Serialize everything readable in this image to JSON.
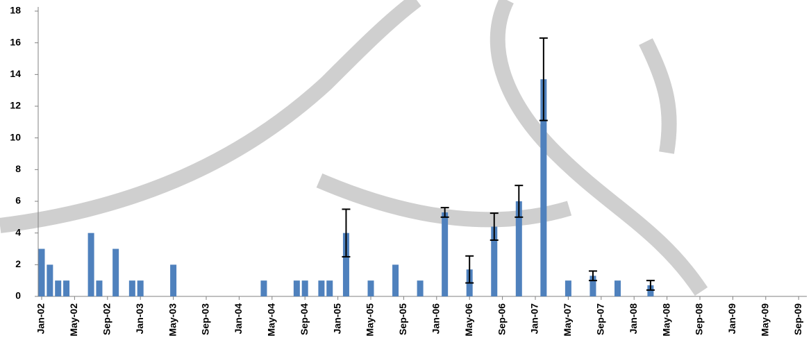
{
  "chart_data": {
    "type": "bar",
    "color": "#4f81bd",
    "error_color": "#000000",
    "categories": [
      "Jan-02",
      null,
      null,
      null,
      "May-02",
      null,
      null,
      null,
      "Sep-02",
      null,
      null,
      null,
      "Jan-03",
      null,
      null,
      null,
      "May-03",
      null,
      null,
      null,
      "Sep-03",
      null,
      null,
      null,
      "Jan-04",
      null,
      null,
      null,
      "May-04",
      null,
      null,
      null,
      "Sep-04",
      null,
      null,
      null,
      "Jan-05",
      null,
      null,
      null,
      "May-05",
      null,
      null,
      null,
      "Sep-05",
      null,
      null,
      null,
      "Jan-06",
      null,
      null,
      null,
      "May-06",
      null,
      null,
      null,
      "Sep-06",
      null,
      null,
      null,
      "Jan-07",
      null,
      null,
      null,
      "May-07",
      null,
      null,
      null,
      "Sep-07",
      null,
      null,
      null,
      "Jan-08",
      null,
      null,
      null,
      "May-08",
      null,
      null,
      null,
      "Sep-08",
      null,
      null,
      null,
      "Jan-09",
      null,
      null,
      null,
      "May-09",
      null,
      null,
      null,
      "Sep-09"
    ],
    "values": [
      3,
      2,
      1,
      1,
      null,
      null,
      4,
      1,
      null,
      3,
      null,
      1,
      1,
      null,
      null,
      null,
      2,
      null,
      null,
      null,
      null,
      null,
      null,
      null,
      null,
      null,
      null,
      1,
      null,
      null,
      null,
      1,
      1,
      null,
      1,
      1,
      null,
      4,
      null,
      null,
      1,
      null,
      null,
      2,
      null,
      null,
      1,
      null,
      null,
      5.3,
      null,
      null,
      1.7,
      null,
      null,
      4.4,
      null,
      null,
      6,
      null,
      null,
      13.7,
      null,
      null,
      1,
      null,
      null,
      1.3,
      null,
      null,
      1,
      null,
      null,
      null,
      0.7,
      null,
      null,
      null,
      null,
      null,
      null,
      null,
      null,
      null,
      null,
      null,
      null,
      null,
      null,
      null,
      null,
      null,
      null
    ],
    "errors": [
      null,
      null,
      null,
      null,
      null,
      null,
      null,
      null,
      null,
      null,
      null,
      null,
      null,
      null,
      null,
      null,
      null,
      null,
      null,
      null,
      null,
      null,
      null,
      null,
      null,
      null,
      null,
      null,
      null,
      null,
      null,
      null,
      null,
      null,
      null,
      null,
      null,
      1.5,
      null,
      null,
      null,
      null,
      null,
      null,
      null,
      null,
      null,
      null,
      null,
      0.3,
      null,
      null,
      0.85,
      null,
      null,
      0.85,
      null,
      null,
      1,
      null,
      null,
      2.6,
      null,
      null,
      null,
      null,
      null,
      0.3,
      null,
      null,
      null,
      null,
      null,
      null,
      0.3,
      null,
      null,
      null,
      null,
      null,
      null,
      null,
      null,
      null,
      null,
      null,
      null,
      null,
      null,
      null,
      null,
      null,
      null
    ],
    "ylim": [
      0,
      18
    ],
    "yticks": [
      0,
      2,
      4,
      6,
      8,
      10,
      12,
      14,
      16,
      18
    ]
  }
}
